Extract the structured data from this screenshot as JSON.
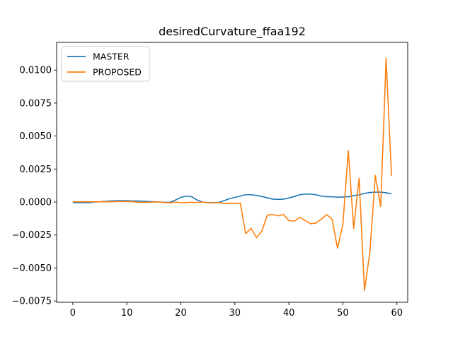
{
  "chart_data": {
    "type": "line",
    "title": "desiredCurvature_ffaa192",
    "xlabel": "",
    "ylabel": "",
    "xlim": [
      -3,
      62
    ],
    "ylim": [
      -0.0076,
      0.0121
    ],
    "x_ticks": [
      0,
      10,
      20,
      30,
      40,
      50,
      60
    ],
    "x_tick_labels": [
      "0",
      "10",
      "20",
      "30",
      "40",
      "50",
      "60"
    ],
    "y_ticks": [
      -0.0075,
      -0.005,
      -0.0025,
      0.0,
      0.0025,
      0.005,
      0.0075,
      0.01
    ],
    "y_tick_labels": [
      "−0.0075",
      "−0.0050",
      "−0.0025",
      "0.0000",
      "0.0025",
      "0.0050",
      "0.0075",
      "0.0100"
    ],
    "grid": false,
    "legend_position": "upper-left",
    "series": [
      {
        "name": "MASTER",
        "color": "#1f77b4",
        "x": [
          0,
          1,
          2,
          3,
          4,
          5,
          6,
          7,
          8,
          9,
          10,
          11,
          12,
          13,
          14,
          15,
          16,
          17,
          18,
          19,
          20,
          21,
          22,
          23,
          24,
          25,
          26,
          27,
          28,
          29,
          30,
          31,
          32,
          33,
          34,
          35,
          36,
          37,
          38,
          39,
          40,
          41,
          42,
          43,
          44,
          45,
          46,
          47,
          48,
          49,
          50,
          51,
          52,
          53,
          54,
          55,
          56,
          57,
          58,
          59
        ],
        "values": [
          -5e-05,
          -5e-05,
          -5e-05,
          -5e-05,
          0.0,
          2e-05,
          5e-05,
          8e-05,
          0.0001,
          0.0001,
          0.0001,
          8e-05,
          8e-05,
          6e-05,
          4e-05,
          2e-05,
          0.0,
          -2e-05,
          -2e-05,
          0.00015,
          0.00035,
          0.00045,
          0.0004,
          0.00015,
          0.0,
          -5e-05,
          -5e-05,
          -3e-05,
          0.0001,
          0.00025,
          0.00035,
          0.00045,
          0.00055,
          0.00055,
          0.0005,
          0.00042,
          0.00032,
          0.00022,
          0.0002,
          0.00022,
          0.0003,
          0.00042,
          0.00055,
          0.0006,
          0.0006,
          0.00055,
          0.00045,
          0.0004,
          0.0004,
          0.00036,
          0.00038,
          0.0004,
          0.00048,
          0.00055,
          0.00065,
          0.00072,
          0.00075,
          0.00075,
          0.0007,
          0.00062
        ]
      },
      {
        "name": "PROPOSED",
        "color": "#ff7f0e",
        "x": [
          0,
          1,
          2,
          3,
          4,
          5,
          6,
          7,
          8,
          9,
          10,
          11,
          12,
          13,
          14,
          15,
          16,
          17,
          18,
          19,
          20,
          21,
          22,
          23,
          24,
          25,
          26,
          27,
          28,
          29,
          30,
          31,
          32,
          33,
          34,
          35,
          36,
          37,
          38,
          39,
          40,
          41,
          42,
          43,
          44,
          45,
          46,
          47,
          48,
          49,
          50,
          51,
          52,
          53,
          54,
          55,
          56,
          57,
          58,
          59
        ],
        "values": [
          2e-05,
          2e-05,
          2e-05,
          2e-05,
          2e-05,
          2e-05,
          2e-05,
          2e-05,
          4e-05,
          4e-05,
          4e-05,
          3e-05,
          -2e-05,
          -2e-05,
          -2e-05,
          0.0,
          0.0,
          -4e-05,
          -6e-05,
          0.0,
          -6e-05,
          -4e-05,
          -2e-05,
          -4e-05,
          0.0,
          -6e-05,
          -6e-05,
          -5e-05,
          -0.0001,
          -0.0001,
          -0.0001,
          -8e-05,
          -0.0024,
          -0.002,
          -0.0027,
          -0.0022,
          -0.001,
          -0.00095,
          -0.00105,
          -0.00095,
          -0.0014,
          -0.00145,
          -0.00115,
          -0.0014,
          -0.00165,
          -0.0016,
          -0.0013,
          -0.00095,
          -0.0013,
          -0.0035,
          -0.0017,
          0.0039,
          -0.002,
          0.0018,
          -0.0067,
          -0.0038,
          0.002,
          -0.00035,
          0.0109,
          0.002
        ]
      }
    ]
  }
}
